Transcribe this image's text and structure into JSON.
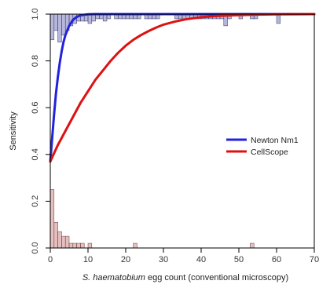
{
  "chart_data": {
    "type": "line",
    "title": "",
    "xlabel_italic": "S. haematobium",
    "xlabel_rest": " egg count (conventional microscopy)",
    "ylabel": "Sensitivity",
    "xlim": [
      0,
      70
    ],
    "ylim": [
      0,
      1
    ],
    "x_ticks": [
      "0",
      "10",
      "20",
      "30",
      "40",
      "50",
      "60",
      "70"
    ],
    "y_ticks": [
      "0.0",
      "0.2",
      "0.4",
      "0.6",
      "0.8",
      "1.0"
    ],
    "grid": false,
    "legend_position": "center-right",
    "series": [
      {
        "name": "Newton Nm1",
        "color": "#2222dd",
        "x": [
          0,
          0.5,
          1,
          1.5,
          2,
          2.5,
          3,
          3.5,
          4,
          5,
          6,
          7,
          8,
          10,
          12,
          15,
          20,
          30,
          70
        ],
        "values": [
          0.37,
          0.47,
          0.57,
          0.66,
          0.73,
          0.79,
          0.84,
          0.88,
          0.91,
          0.95,
          0.975,
          0.988,
          0.995,
          0.999,
          1.0,
          1.0,
          1.0,
          1.0,
          1.0
        ]
      },
      {
        "name": "CellScope",
        "color": "#dd1111",
        "x": [
          0,
          2,
          4,
          6,
          8,
          10,
          12,
          14,
          16,
          18,
          20,
          22,
          24,
          26,
          28,
          30,
          33,
          36,
          40,
          45,
          50,
          55,
          60,
          70
        ],
        "values": [
          0.37,
          0.44,
          0.5,
          0.56,
          0.62,
          0.67,
          0.72,
          0.76,
          0.8,
          0.835,
          0.865,
          0.89,
          0.91,
          0.927,
          0.942,
          0.955,
          0.968,
          0.978,
          0.987,
          0.993,
          0.996,
          0.998,
          0.999,
          1.0
        ]
      }
    ],
    "histogram_top": {
      "color": "#7b7bbd",
      "bins": [
        0,
        1,
        2,
        3,
        4,
        5,
        6,
        7,
        8,
        9,
        10,
        11,
        12,
        13,
        14,
        15,
        17,
        18,
        19,
        20,
        21,
        22,
        23,
        25,
        26,
        27,
        28,
        33,
        34,
        35,
        36,
        37,
        38,
        39,
        40,
        41,
        42,
        43,
        44,
        45,
        46,
        47,
        50,
        53,
        54,
        60
      ],
      "heights": [
        0.11,
        0.07,
        0.12,
        0.09,
        0.07,
        0.05,
        0.04,
        0.03,
        0.03,
        0.03,
        0.04,
        0.03,
        0.02,
        0.02,
        0.03,
        0.02,
        0.02,
        0.02,
        0.02,
        0.02,
        0.02,
        0.02,
        0.02,
        0.02,
        0.02,
        0.02,
        0.02,
        0.02,
        0.02,
        0.02,
        0.02,
        0.02,
        0.02,
        0.02,
        0.02,
        0.02,
        0.02,
        0.02,
        0.02,
        0.02,
        0.05,
        0.02,
        0.02,
        0.02,
        0.02,
        0.04
      ]
    },
    "histogram_bottom": {
      "color": "#d08a8a",
      "bins": [
        0,
        1,
        2,
        3,
        4,
        5,
        6,
        7,
        8,
        10,
        22,
        53
      ],
      "heights": [
        0.25,
        0.11,
        0.07,
        0.05,
        0.05,
        0.02,
        0.02,
        0.02,
        0.02,
        0.02,
        0.02,
        0.02
      ]
    }
  }
}
